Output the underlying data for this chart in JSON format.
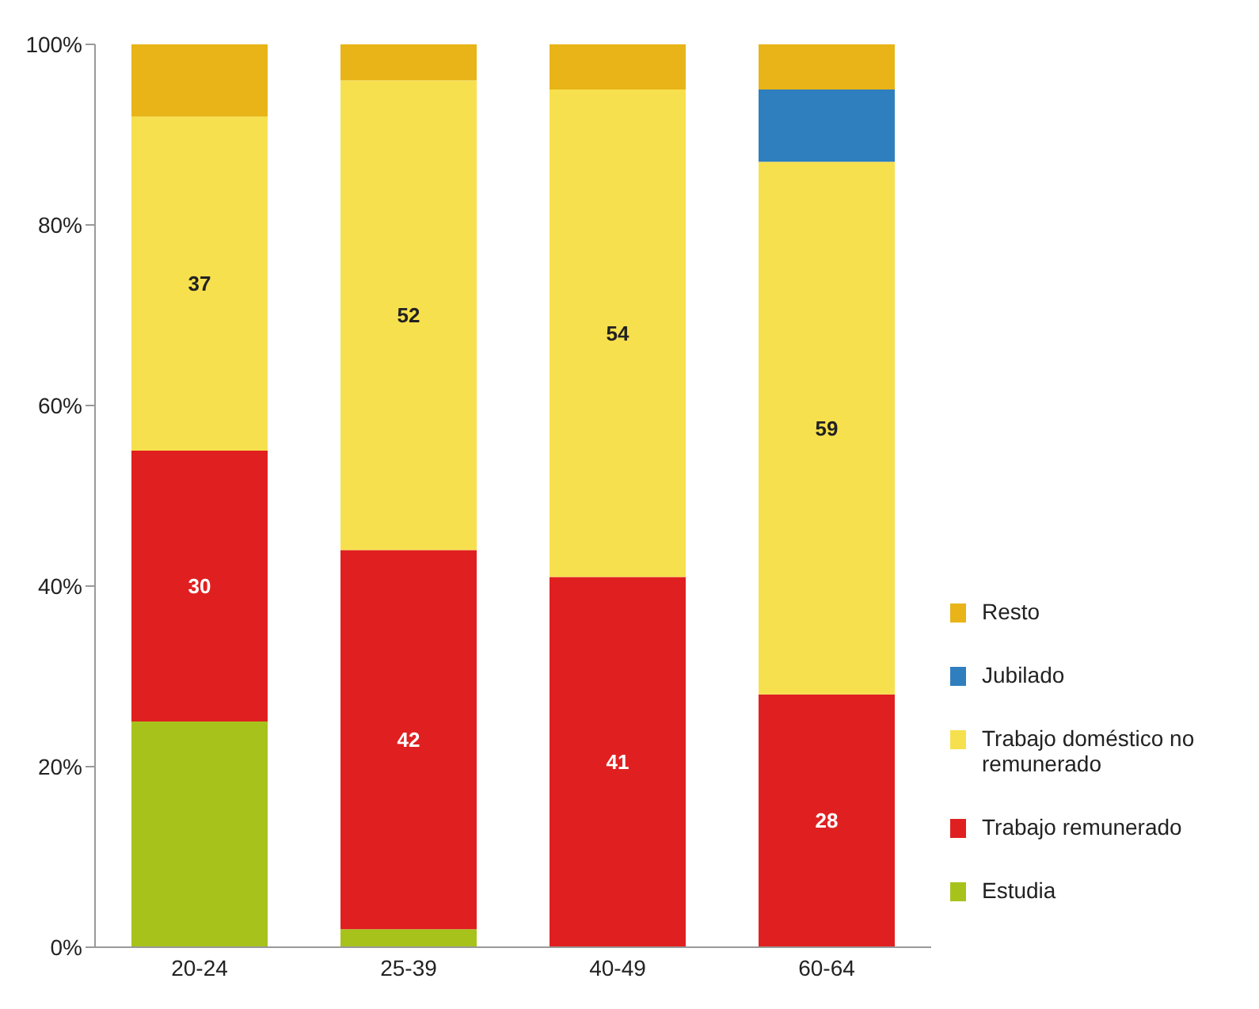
{
  "chart_data": {
    "type": "bar",
    "stacked": true,
    "categories": [
      "20-24",
      "25-39",
      "40-49",
      "60-64"
    ],
    "series": [
      {
        "name": "Estudia",
        "color": "#a8c21c",
        "values": [
          25,
          2,
          0,
          0
        ]
      },
      {
        "name": "Trabajo remunerado",
        "color": "#e02020",
        "values": [
          30,
          42,
          41,
          28
        ],
        "value_labels": [
          "30",
          "42",
          "41",
          "28"
        ]
      },
      {
        "name": "Trabajo doméstico no remunerado",
        "color": "#f7e04e",
        "values": [
          37,
          52,
          54,
          59
        ],
        "value_labels": [
          "37",
          "52",
          "54",
          "59"
        ]
      },
      {
        "name": "Jubilado",
        "color": "#2f7fbf",
        "values": [
          0,
          0,
          0,
          8
        ]
      },
      {
        "name": "Resto",
        "color": "#e8b417",
        "values": [
          8,
          4,
          5,
          5
        ]
      }
    ],
    "ylim": [
      0,
      100
    ],
    "yticks": [
      {
        "value": 0,
        "label": "0%"
      },
      {
        "value": 20,
        "label": "20%"
      },
      {
        "value": 40,
        "label": "40%"
      },
      {
        "value": 60,
        "label": "60%"
      },
      {
        "value": 80,
        "label": "80%"
      },
      {
        "value": 100,
        "label": "100%"
      }
    ],
    "grid": false,
    "legend": "right"
  }
}
